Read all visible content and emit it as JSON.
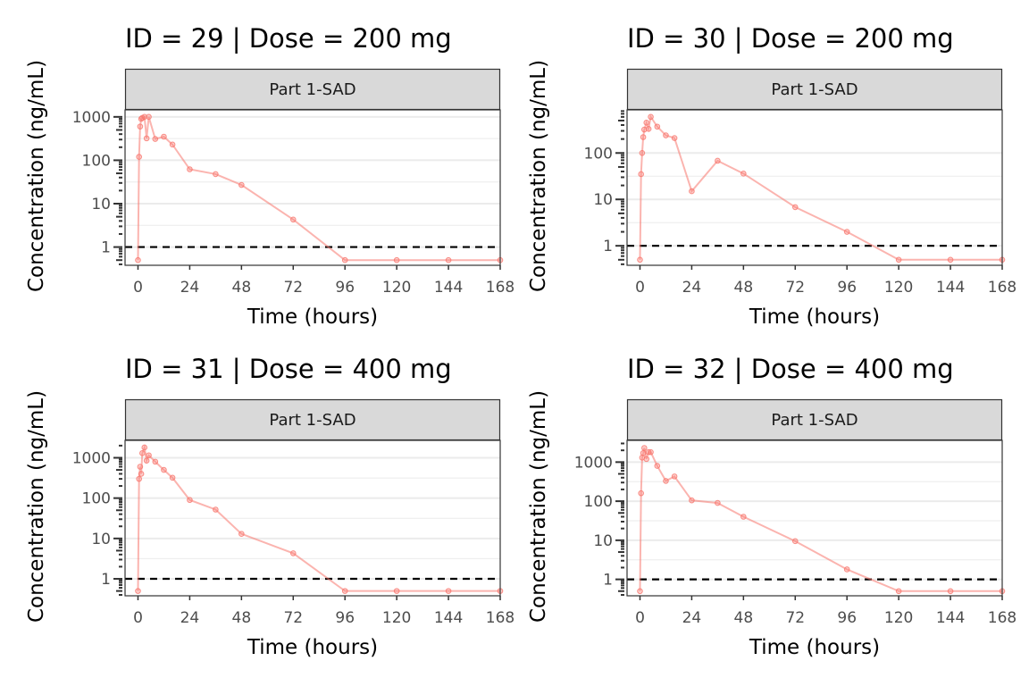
{
  "figure": {
    "xlabel": "Time (hours)",
    "ylabel": "Concentration (ng/mL)",
    "strip_label": "Part 1-SAD",
    "series_color": "#F8766D",
    "reference_line_color": "#000000",
    "strip_fill": "#D9D9D9",
    "grid_color": "#EBEBEB"
  },
  "chart_data": [
    {
      "type": "line",
      "title": "ID = 29 | Dose = 200 mg",
      "facet": "Part 1-SAD",
      "xlabel": "Time (hours)",
      "ylabel": "Concentration (ng/mL)",
      "x_ticks": [
        0,
        24,
        48,
        72,
        96,
        120,
        144,
        168
      ],
      "y_ticks": [
        1,
        10,
        100,
        1000
      ],
      "y_tick_labels": [
        "1",
        "10",
        "100",
        "1000"
      ],
      "xlim": [
        -6,
        168
      ],
      "ylim": [
        0.38,
        1450
      ],
      "y_scale": "log10",
      "grid": true,
      "reference_line": {
        "y": 1,
        "style": "dashed"
      },
      "x": [
        0,
        0.5,
        1,
        1.5,
        2,
        3,
        4,
        5,
        8,
        12,
        16,
        24,
        36,
        48,
        72,
        96,
        120,
        144,
        168
      ],
      "y": [
        0.5,
        120,
        600,
        900,
        950,
        1000,
        320,
        1000,
        310,
        350,
        230,
        62,
        48,
        27,
        4.3,
        0.5,
        0.5,
        0.5,
        0.5
      ]
    },
    {
      "type": "line",
      "title": "ID = 30 | Dose = 200 mg",
      "facet": "Part 1-SAD",
      "xlabel": "Time (hours)",
      "ylabel": "Concentration (ng/mL)",
      "x_ticks": [
        0,
        24,
        48,
        72,
        96,
        120,
        144,
        168
      ],
      "y_ticks": [
        1,
        10,
        100
      ],
      "y_tick_labels": [
        "1",
        "10",
        "100"
      ],
      "xlim": [
        -6,
        168
      ],
      "ylim": [
        0.38,
        850
      ],
      "y_scale": "log10",
      "grid": true,
      "reference_line": {
        "y": 1,
        "style": "dashed"
      },
      "x": [
        0,
        0.5,
        1,
        1.5,
        2,
        3,
        4,
        5,
        8,
        12,
        16,
        24,
        36,
        48,
        72,
        96,
        120,
        144,
        168
      ],
      "y": [
        0.5,
        35,
        100,
        220,
        320,
        450,
        330,
        600,
        370,
        240,
        210,
        15,
        68,
        36,
        6.8,
        2,
        0.5,
        0.5,
        0.5
      ]
    },
    {
      "type": "line",
      "title": "ID = 31 | Dose = 400 mg",
      "facet": "Part 1-SAD",
      "xlabel": "Time (hours)",
      "ylabel": "Concentration (ng/mL)",
      "x_ticks": [
        0,
        24,
        48,
        72,
        96,
        120,
        144,
        168
      ],
      "y_ticks": [
        1,
        10,
        100,
        1000
      ],
      "y_tick_labels": [
        "1",
        "10",
        "100",
        "1000"
      ],
      "xlim": [
        -6,
        168
      ],
      "ylim": [
        0.38,
        2700
      ],
      "y_scale": "log10",
      "grid": true,
      "reference_line": {
        "y": 1,
        "style": "dashed"
      },
      "x": [
        0,
        0.5,
        1,
        1.5,
        2,
        3,
        4,
        5,
        8,
        12,
        16,
        24,
        36,
        48,
        72,
        96,
        120,
        144,
        168
      ],
      "y": [
        0.5,
        300,
        600,
        400,
        1300,
        1800,
        850,
        1150,
        800,
        500,
        320,
        90,
        52,
        13,
        4.3,
        0.5,
        0.5,
        0.5,
        0.5
      ]
    },
    {
      "type": "line",
      "title": "ID = 32 | Dose = 400 mg",
      "facet": "Part 1-SAD",
      "xlabel": "Time (hours)",
      "ylabel": "Concentration (ng/mL)",
      "x_ticks": [
        0,
        24,
        48,
        72,
        96,
        120,
        144,
        168
      ],
      "y_ticks": [
        1,
        10,
        100,
        1000
      ],
      "y_tick_labels": [
        "1",
        "10",
        "100",
        "1000"
      ],
      "xlim": [
        -6,
        168
      ],
      "ylim": [
        0.38,
        3600
      ],
      "y_scale": "log10",
      "grid": true,
      "reference_line": {
        "y": 1,
        "style": "dashed"
      },
      "x": [
        0,
        0.5,
        1,
        1.5,
        2,
        3,
        4,
        5,
        8,
        12,
        16,
        24,
        36,
        48,
        72,
        96,
        120,
        144,
        168
      ],
      "y": [
        0.5,
        160,
        1300,
        1700,
        2300,
        1200,
        1800,
        1800,
        800,
        330,
        430,
        105,
        90,
        40,
        9.5,
        1.8,
        0.5,
        0.5,
        0.5
      ]
    }
  ]
}
